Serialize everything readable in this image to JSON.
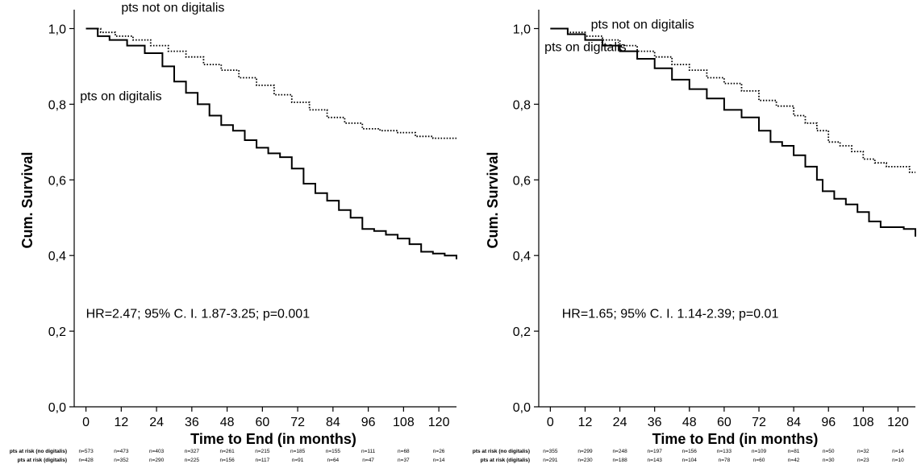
{
  "chart_data": [
    {
      "type": "line",
      "title": "",
      "xlabel": "Time to End (in months)",
      "ylabel": "Cum. Survival",
      "xlim": [
        -4,
        126
      ],
      "ylim": [
        0,
        1.05
      ],
      "x_ticks": [
        0,
        12,
        24,
        36,
        48,
        60,
        72,
        84,
        96,
        108,
        120
      ],
      "x_tick_labels": [
        "0",
        "12",
        "24",
        "36",
        "48",
        "60",
        "72",
        "84",
        "96",
        "108",
        "120"
      ],
      "y_ticks": [
        0,
        0.2,
        0.4,
        0.6,
        0.8,
        1.0
      ],
      "y_tick_labels": [
        "0,0",
        "0,2",
        "0,4",
        "0,6",
        "0,8",
        "1,0"
      ],
      "grid": false,
      "annotations": [
        {
          "id": "label-not-digitalis",
          "text": "pts not on digitalis",
          "x": 12,
          "y": 1.045
        },
        {
          "id": "label-digitalis",
          "text": "pts on digitalis",
          "x": -2,
          "y": 0.81
        },
        {
          "id": "hr",
          "text": "HR=2.47; 95% C. I. 1.87-3.25; p=0.001",
          "x": 0,
          "y": 0.235
        }
      ],
      "series": [
        {
          "name": "pts not on digitalis",
          "style": "dotted",
          "x": [
            0,
            5,
            10,
            16,
            22,
            28,
            34,
            40,
            46,
            52,
            58,
            64,
            70,
            76,
            82,
            88,
            94,
            100,
            106,
            112,
            118,
            126
          ],
          "y": [
            1.0,
            0.99,
            0.98,
            0.97,
            0.955,
            0.94,
            0.925,
            0.905,
            0.89,
            0.87,
            0.85,
            0.825,
            0.805,
            0.785,
            0.765,
            0.75,
            0.735,
            0.73,
            0.725,
            0.715,
            0.71,
            0.71
          ]
        },
        {
          "name": "pts on digitalis",
          "style": "solid",
          "x": [
            0,
            4,
            8,
            14,
            20,
            26,
            30,
            34,
            38,
            42,
            46,
            50,
            54,
            58,
            62,
            66,
            70,
            74,
            78,
            82,
            86,
            90,
            94,
            98,
            102,
            106,
            110,
            114,
            118,
            122,
            126
          ],
          "y": [
            1.0,
            0.98,
            0.97,
            0.955,
            0.935,
            0.9,
            0.86,
            0.83,
            0.8,
            0.77,
            0.745,
            0.73,
            0.705,
            0.685,
            0.67,
            0.66,
            0.63,
            0.59,
            0.565,
            0.545,
            0.52,
            0.5,
            0.47,
            0.465,
            0.455,
            0.445,
            0.43,
            0.41,
            0.405,
            0.4,
            0.39
          ]
        }
      ],
      "risk_table": {
        "rows": [
          {
            "label": "pts at risk (no digitalis)",
            "values": [
              "n=573",
              "n=473",
              "n=403",
              "n=327",
              "n=261",
              "n=215",
              "n=185",
              "n=155",
              "n=111",
              "n=68",
              "n=26"
            ]
          },
          {
            "label": "pts at risk (digitalis)",
            "values": [
              "n=428",
              "n=352",
              "n=290",
              "n=225",
              "n=156",
              "n=117",
              "n=91",
              "n=64",
              "n=47",
              "n=37",
              "n=14"
            ]
          }
        ]
      }
    },
    {
      "type": "line",
      "title": "",
      "xlabel": "Time to End (in months)",
      "ylabel": "Cum. Survival",
      "xlim": [
        -4,
        126
      ],
      "ylim": [
        0,
        1.05
      ],
      "x_ticks": [
        0,
        12,
        24,
        36,
        48,
        60,
        72,
        84,
        96,
        108,
        120
      ],
      "x_tick_labels": [
        "0",
        "12",
        "24",
        "36",
        "48",
        "60",
        "72",
        "84",
        "96",
        "108",
        "120"
      ],
      "y_ticks": [
        0,
        0.2,
        0.4,
        0.6,
        0.8,
        1.0
      ],
      "y_tick_labels": [
        "0,0",
        "0,2",
        "0,4",
        "0,6",
        "0,8",
        "1,0"
      ],
      "grid": false,
      "annotations": [
        {
          "id": "label-not-digitalis",
          "text": "pts not on digitalis",
          "x": 14,
          "y": 1.0
        },
        {
          "id": "label-digitalis",
          "text": "pts on digitalis",
          "x": -2,
          "y": 0.94
        },
        {
          "id": "hr",
          "text": "HR=1.65; 95% C. I. 1.14-2.39; p=0.01",
          "x": 4,
          "y": 0.235
        }
      ],
      "series": [
        {
          "name": "pts not on digitalis",
          "style": "dotted",
          "x": [
            0,
            6,
            12,
            18,
            24,
            30,
            36,
            42,
            48,
            54,
            60,
            66,
            72,
            78,
            84,
            88,
            92,
            96,
            100,
            104,
            108,
            112,
            116,
            120,
            124,
            126
          ],
          "y": [
            1.0,
            0.99,
            0.98,
            0.97,
            0.955,
            0.94,
            0.925,
            0.905,
            0.89,
            0.87,
            0.855,
            0.835,
            0.81,
            0.795,
            0.77,
            0.75,
            0.73,
            0.7,
            0.69,
            0.675,
            0.655,
            0.645,
            0.635,
            0.635,
            0.62,
            0.62
          ]
        },
        {
          "name": "pts on digitalis",
          "style": "solid",
          "x": [
            0,
            6,
            12,
            18,
            24,
            30,
            36,
            42,
            48,
            54,
            60,
            66,
            72,
            76,
            80,
            84,
            88,
            92,
            94,
            98,
            102,
            106,
            110,
            114,
            118,
            122,
            126
          ],
          "y": [
            1.0,
            0.985,
            0.97,
            0.955,
            0.94,
            0.92,
            0.895,
            0.865,
            0.84,
            0.815,
            0.785,
            0.765,
            0.73,
            0.7,
            0.69,
            0.665,
            0.635,
            0.6,
            0.57,
            0.55,
            0.535,
            0.515,
            0.49,
            0.475,
            0.475,
            0.47,
            0.45
          ]
        }
      ],
      "risk_table": {
        "rows": [
          {
            "label": "pts at risk (no digitalis)",
            "values": [
              "n=355",
              "n=299",
              "n=248",
              "n=197",
              "n=156",
              "n=133",
              "n=109",
              "n=81",
              "n=50",
              "n=32",
              "n=14"
            ]
          },
          {
            "label": "pts at risk (digitalis)",
            "values": [
              "n=291",
              "n=230",
              "n=188",
              "n=143",
              "n=104",
              "n=78",
              "n=60",
              "n=42",
              "n=30",
              "n=23",
              "n=10"
            ]
          }
        ]
      }
    }
  ]
}
